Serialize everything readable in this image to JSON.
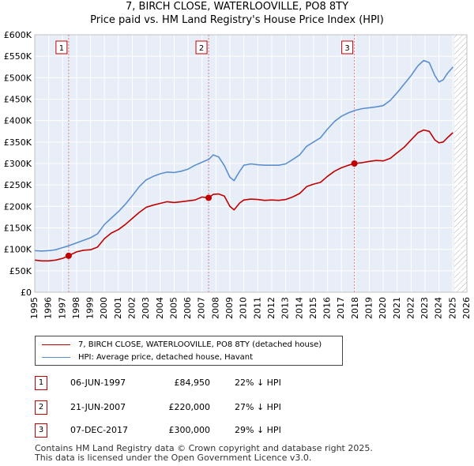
{
  "title": "7, BIRCH CLOSE, WATERLOOVILLE, PO8 8TY",
  "subtitle": "Price paid vs. HM Land Registry's House Price Index (HPI)",
  "legend": {
    "property_label": "7, BIRCH CLOSE, WATERLOOVILLE, PO8 8TY (detached house)",
    "hpi_label": "HPI: Average price, detached house, Havant"
  },
  "colors": {
    "property": "#c00000",
    "hpi": "#5b8fd0",
    "grid": "#d9e2f0",
    "bg": "#e8eef8",
    "marker_line": "#e08080"
  },
  "transactions": [
    {
      "num": "1",
      "date": "06-JUN-1997",
      "price": "£84,950",
      "hpi_diff": "22% ↓ HPI"
    },
    {
      "num": "2",
      "date": "21-JUN-2007",
      "price": "£220,000",
      "hpi_diff": "27% ↓ HPI"
    },
    {
      "num": "3",
      "date": "07-DEC-2017",
      "price": "£300,000",
      "hpi_diff": "29% ↓ HPI"
    }
  ],
  "footer": {
    "line1": "Contains HM Land Registry data © Crown copyright and database right 2025.",
    "line2": "This data is licensed under the Open Government Licence v3.0."
  },
  "chart_data": {
    "type": "line",
    "title": "7, BIRCH CLOSE, WATERLOOVILLE, PO8 8TY",
    "subtitle": "Price paid vs. HM Land Registry's House Price Index (HPI)",
    "xlabel": "",
    "ylabel": "",
    "xlim": [
      1995,
      2026
    ],
    "ylim": [
      0,
      600000
    ],
    "y_ticks": [
      0,
      50000,
      100000,
      150000,
      200000,
      250000,
      300000,
      350000,
      400000,
      450000,
      500000,
      550000,
      600000
    ],
    "y_tick_labels": [
      "£0",
      "£50K",
      "£100K",
      "£150K",
      "£200K",
      "£250K",
      "£300K",
      "£350K",
      "£400K",
      "£450K",
      "£500K",
      "£550K",
      "£600K"
    ],
    "x_ticks": [
      1995,
      1996,
      1997,
      1998,
      1999,
      2000,
      2001,
      2002,
      2003,
      2004,
      2005,
      2006,
      2007,
      2008,
      2009,
      2010,
      2011,
      2012,
      2013,
      2014,
      2015,
      2016,
      2017,
      2018,
      2019,
      2020,
      2021,
      2022,
      2023,
      2024,
      2025,
      2026
    ],
    "x_tick_labels": [
      "1995",
      "1996",
      "1997",
      "1998",
      "1999",
      "2000",
      "2001",
      "2002",
      "2003",
      "2004",
      "2005",
      "2006",
      "2007",
      "2008",
      "2009",
      "2010",
      "2011",
      "2012",
      "2013",
      "2014",
      "2015",
      "2016",
      "2017",
      "2018",
      "2019",
      "2020",
      "2021",
      "2022",
      "2023",
      "2024",
      "2025",
      "2026"
    ],
    "grid": true,
    "legend_position": "below",
    "hatch_after": 2025.1,
    "series": [
      {
        "name": "7, BIRCH CLOSE, WATERLOOVILLE, PO8 8TY (detached house)",
        "x": [
          1995.0,
          1995.5,
          1996.0,
          1996.5,
          1997.0,
          1997.43,
          1998.0,
          1998.5,
          1999.0,
          1999.5,
          2000.0,
          2000.5,
          2001.0,
          2001.5,
          2002.0,
          2002.5,
          2003.0,
          2003.5,
          2004.0,
          2004.5,
          2005.0,
          2005.5,
          2006.0,
          2006.5,
          2007.0,
          2007.47,
          2007.8,
          2008.2,
          2008.6,
          2009.0,
          2009.3,
          2009.7,
          2010.0,
          2010.5,
          2011.0,
          2011.5,
          2012.0,
          2012.5,
          2013.0,
          2013.5,
          2014.0,
          2014.5,
          2015.0,
          2015.5,
          2016.0,
          2016.5,
          2017.0,
          2017.5,
          2017.93,
          2018.5,
          2019.0,
          2019.5,
          2020.0,
          2020.5,
          2021.0,
          2021.5,
          2022.0,
          2022.5,
          2022.9,
          2023.3,
          2023.7,
          2024.0,
          2024.3,
          2024.6,
          2025.0
        ],
        "values": [
          75000,
          73000,
          73000,
          75000,
          79000,
          84950,
          94000,
          98000,
          99000,
          105000,
          125000,
          138000,
          146000,
          158000,
          172000,
          186000,
          198000,
          203000,
          207000,
          211000,
          209000,
          211000,
          213000,
          215000,
          222000,
          220000,
          228000,
          229000,
          224000,
          200000,
          192000,
          208000,
          215000,
          217000,
          216000,
          214000,
          215000,
          214000,
          216000,
          222000,
          230000,
          246000,
          252000,
          256000,
          270000,
          282000,
          290000,
          296000,
          300000,
          302000,
          305000,
          307000,
          306000,
          312000,
          325000,
          338000,
          355000,
          372000,
          378000,
          375000,
          355000,
          348000,
          350000,
          360000,
          372000
        ]
      },
      {
        "name": "HPI: Average price, detached house, Havant",
        "x": [
          1995.0,
          1995.5,
          1996.0,
          1996.5,
          1997.0,
          1997.5,
          1998.0,
          1998.5,
          1999.0,
          1999.5,
          2000.0,
          2000.5,
          2001.0,
          2001.5,
          2002.0,
          2002.5,
          2003.0,
          2003.5,
          2004.0,
          2004.5,
          2005.0,
          2005.5,
          2006.0,
          2006.5,
          2007.0,
          2007.5,
          2007.8,
          2008.2,
          2008.6,
          2009.0,
          2009.3,
          2009.7,
          2010.0,
          2010.5,
          2011.0,
          2011.5,
          2012.0,
          2012.5,
          2013.0,
          2013.5,
          2014.0,
          2014.5,
          2015.0,
          2015.5,
          2016.0,
          2016.5,
          2017.0,
          2017.5,
          2018.0,
          2018.5,
          2019.0,
          2019.5,
          2020.0,
          2020.5,
          2021.0,
          2021.5,
          2022.0,
          2022.5,
          2022.9,
          2023.3,
          2023.7,
          2024.0,
          2024.3,
          2024.6,
          2025.0
        ],
        "values": [
          97000,
          96000,
          97000,
          99000,
          104000,
          109000,
          115000,
          121000,
          127000,
          136000,
          158000,
          173000,
          188000,
          205000,
          225000,
          246000,
          262000,
          270000,
          276000,
          280000,
          279000,
          282000,
          287000,
          296000,
          303000,
          310000,
          320000,
          315000,
          295000,
          268000,
          260000,
          282000,
          296000,
          299000,
          297000,
          296000,
          296000,
          296000,
          299000,
          309000,
          320000,
          340000,
          350000,
          360000,
          380000,
          398000,
          410000,
          418000,
          424000,
          428000,
          430000,
          432000,
          435000,
          447000,
          465000,
          485000,
          505000,
          528000,
          540000,
          535000,
          505000,
          490000,
          495000,
          510000,
          525000
        ]
      }
    ],
    "annotations": [
      {
        "label": "1",
        "x": 1997.43,
        "y": 84950
      },
      {
        "label": "2",
        "x": 2007.47,
        "y": 220000
      },
      {
        "label": "3",
        "x": 2017.93,
        "y": 300000
      }
    ]
  }
}
